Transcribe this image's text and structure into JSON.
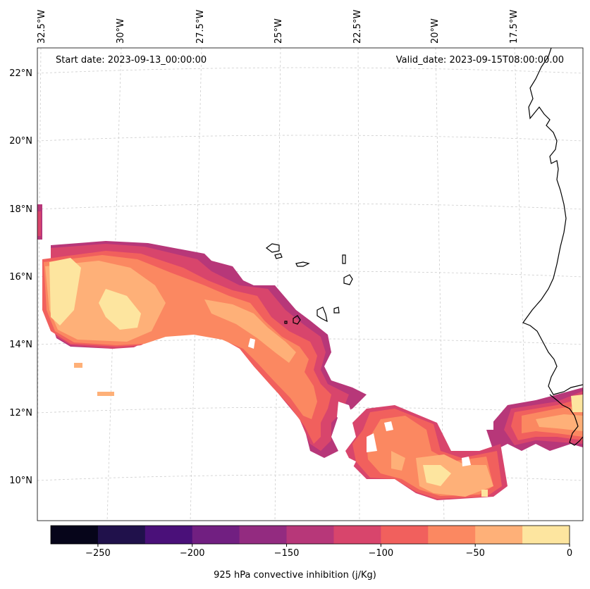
{
  "header": {
    "start_date": "Start date: 2023-09-13_00:00:00",
    "valid_date": "Valid_date: 2023-09-15T08:00:00.00"
  },
  "map": {
    "longitude_labels": [
      "32.5°W",
      "30°W",
      "27.5°W",
      "25°W",
      "22.5°W",
      "20°W",
      "17.5°W"
    ],
    "latitude_labels": [
      "22°N",
      "20°N",
      "18°N",
      "16°N",
      "14°N",
      "12°N",
      "10°N"
    ],
    "gridlines": true,
    "field_variable": "925 hPa convective inhibition"
  },
  "colorbar": {
    "label": "925 hPa convective inhibition (j/Kg)",
    "tick_labels": [
      "−250",
      "−200",
      "−150",
      "−100",
      "−50",
      "0"
    ],
    "levels": [
      -275,
      -250,
      -225,
      -200,
      -175,
      -150,
      -125,
      -100,
      -75,
      -50,
      -25,
      0
    ],
    "colors": [
      "#06051a",
      "#20114b",
      "#4a1079",
      "#711f81",
      "#932b80",
      "#b73779",
      "#d8456c",
      "#f1605d",
      "#fb8861",
      "#feb078",
      "#fde59f"
    ]
  },
  "colors": {
    "coastline": "#000000",
    "grid": "#cccccc"
  }
}
